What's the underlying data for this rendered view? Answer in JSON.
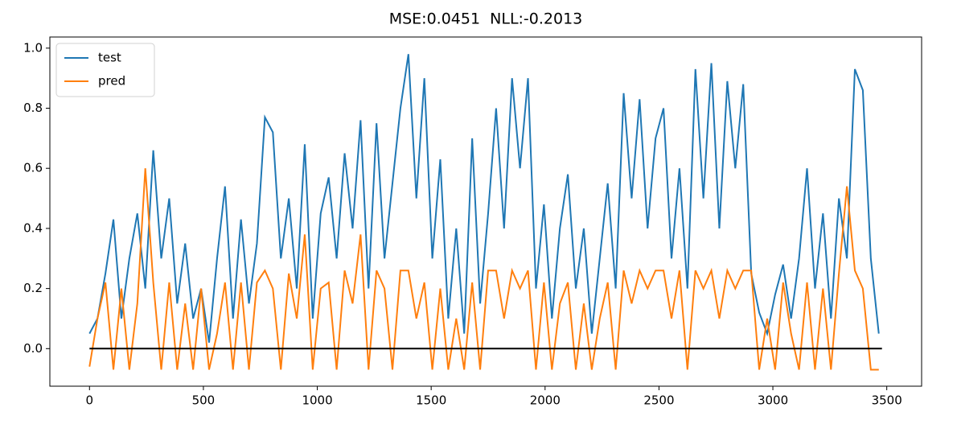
{
  "chart_data": {
    "type": "line",
    "title": "MSE:0.0451  NLL:-0.2013",
    "x": [
      0,
      35,
      70,
      105,
      140,
      175,
      210,
      245,
      280,
      315,
      350,
      385,
      420,
      455,
      490,
      525,
      560,
      595,
      630,
      665,
      700,
      735,
      770,
      805,
      840,
      875,
      910,
      945,
      980,
      1015,
      1050,
      1085,
      1120,
      1155,
      1190,
      1225,
      1260,
      1295,
      1330,
      1365,
      1400,
      1435,
      1470,
      1505,
      1540,
      1575,
      1610,
      1645,
      1680,
      1715,
      1750,
      1785,
      1820,
      1855,
      1890,
      1925,
      1960,
      1995,
      2030,
      2065,
      2100,
      2135,
      2170,
      2205,
      2240,
      2275,
      2310,
      2345,
      2380,
      2415,
      2450,
      2485,
      2520,
      2555,
      2590,
      2625,
      2660,
      2695,
      2730,
      2765,
      2800,
      2835,
      2870,
      2905,
      2940,
      2975,
      3010,
      3045,
      3080,
      3115,
      3150,
      3185,
      3220,
      3255,
      3290,
      3325,
      3360,
      3395,
      3430,
      3465
    ],
    "series": [
      {
        "name": "test",
        "color": "#1f77b4",
        "values": [
          0.05,
          0.1,
          0.25,
          0.43,
          0.1,
          0.3,
          0.45,
          0.2,
          0.66,
          0.3,
          0.5,
          0.15,
          0.35,
          0.1,
          0.2,
          0.02,
          0.3,
          0.54,
          0.1,
          0.43,
          0.15,
          0.35,
          0.77,
          0.72,
          0.3,
          0.5,
          0.2,
          0.68,
          0.1,
          0.45,
          0.57,
          0.3,
          0.65,
          0.4,
          0.76,
          0.2,
          0.75,
          0.3,
          0.55,
          0.8,
          0.98,
          0.5,
          0.9,
          0.3,
          0.63,
          0.1,
          0.4,
          0.05,
          0.7,
          0.15,
          0.45,
          0.8,
          0.4,
          0.9,
          0.6,
          0.9,
          0.2,
          0.48,
          0.1,
          0.4,
          0.58,
          0.2,
          0.4,
          0.05,
          0.3,
          0.55,
          0.2,
          0.85,
          0.5,
          0.83,
          0.4,
          0.7,
          0.8,
          0.3,
          0.6,
          0.2,
          0.93,
          0.5,
          0.95,
          0.4,
          0.89,
          0.6,
          0.88,
          0.25,
          0.12,
          0.05,
          0.18,
          0.28,
          0.1,
          0.3,
          0.6,
          0.2,
          0.45,
          0.1,
          0.5,
          0.3,
          0.93,
          0.86,
          0.3,
          0.05
        ]
      },
      {
        "name": "pred",
        "color": "#ff7f0e",
        "values": [
          -0.06,
          0.1,
          0.22,
          -0.07,
          0.2,
          -0.07,
          0.15,
          0.6,
          0.22,
          -0.07,
          0.22,
          -0.07,
          0.15,
          -0.07,
          0.2,
          -0.07,
          0.05,
          0.22,
          -0.07,
          0.22,
          -0.07,
          0.22,
          0.26,
          0.2,
          -0.07,
          0.25,
          0.1,
          0.38,
          -0.07,
          0.2,
          0.22,
          -0.07,
          0.26,
          0.15,
          0.38,
          -0.07,
          0.26,
          0.2,
          -0.07,
          0.26,
          0.26,
          0.1,
          0.22,
          -0.07,
          0.2,
          -0.07,
          0.1,
          -0.07,
          0.22,
          -0.07,
          0.26,
          0.26,
          0.1,
          0.26,
          0.2,
          0.26,
          -0.07,
          0.22,
          -0.07,
          0.15,
          0.22,
          -0.07,
          0.15,
          -0.07,
          0.1,
          0.22,
          -0.07,
          0.26,
          0.15,
          0.26,
          0.2,
          0.26,
          0.26,
          0.1,
          0.26,
          -0.07,
          0.26,
          0.2,
          0.26,
          0.1,
          0.26,
          0.2,
          0.26,
          0.26,
          -0.07,
          0.1,
          -0.07,
          0.22,
          0.05,
          -0.07,
          0.22,
          -0.07,
          0.2,
          -0.07,
          0.25,
          0.54,
          0.26,
          0.2,
          -0.07,
          -0.07
        ]
      },
      {
        "color": "#000000",
        "x": [
          0,
          3479
        ],
        "values": [
          0,
          0
        ]
      }
    ],
    "xlim": [
      -174,
      3653
    ],
    "ylim": [
      -0.125,
      1.037
    ],
    "xticks": [
      0,
      500,
      1000,
      1500,
      2000,
      2500,
      3000,
      3500
    ],
    "yticks": [
      {
        "value": 0,
        "label": "0.0"
      },
      0.2,
      0.4,
      0.6,
      0.8,
      {
        "value": 1,
        "label": "1.0"
      }
    ],
    "legend": "upper left"
  }
}
